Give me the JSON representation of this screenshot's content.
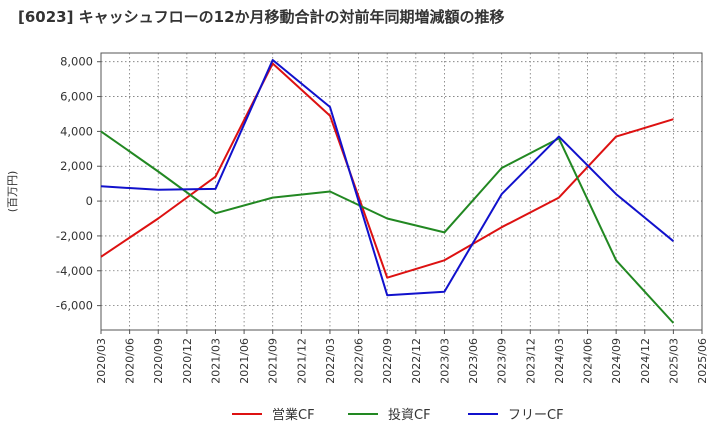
{
  "chart_data": {
    "type": "line",
    "title": "[6023]  キャッシュフローの12か月移動合計の対前年同期増減額の推移",
    "xlabel": "",
    "ylabel": "(百万円)",
    "ylim": [
      -7400,
      8500
    ],
    "yticks": [
      8000,
      6000,
      4000,
      2000,
      0,
      -2000,
      -4000,
      -6000
    ],
    "ytick_labels": [
      "8,000",
      "6,000",
      "4,000",
      "2,000",
      "0",
      "-2,000",
      "-4,000",
      "-6,000"
    ],
    "categories": [
      "2020/03",
      "2020/06",
      "2020/09",
      "2020/12",
      "2021/03",
      "2021/06",
      "2021/09",
      "2021/12",
      "2022/03",
      "2022/06",
      "2022/09",
      "2022/12",
      "2023/03",
      "2023/06",
      "2023/09",
      "2023/12",
      "2024/03",
      "2024/06",
      "2024/09",
      "2024/12",
      "2025/03",
      "2025/06"
    ],
    "grid": true,
    "legend_position": "bottom",
    "series": [
      {
        "name": "営業CF",
        "color": "#dd1111",
        "points": [
          [
            "2020/03",
            -3200
          ],
          [
            "2020/09",
            -1000
          ],
          [
            "2021/03",
            1400
          ],
          [
            "2021/09",
            7900
          ],
          [
            "2022/03",
            4900
          ],
          [
            "2022/09",
            -4400
          ],
          [
            "2023/03",
            -3400
          ],
          [
            "2023/09",
            -1500
          ],
          [
            "2024/03",
            200
          ],
          [
            "2024/09",
            3700
          ],
          [
            "2025/03",
            4700
          ]
        ]
      },
      {
        "name": "投資CF",
        "color": "#228822",
        "points": [
          [
            "2020/03",
            4000
          ],
          [
            "2020/09",
            1700
          ],
          [
            "2021/03",
            -700
          ],
          [
            "2021/09",
            200
          ],
          [
            "2022/03",
            550
          ],
          [
            "2022/09",
            -1000
          ],
          [
            "2023/03",
            -1800
          ],
          [
            "2023/09",
            1900
          ],
          [
            "2024/03",
            3600
          ],
          [
            "2024/09",
            -3400
          ],
          [
            "2025/03",
            -7000
          ]
        ]
      },
      {
        "name": "フリーCF",
        "color": "#1111cc",
        "points": [
          [
            "2020/03",
            850
          ],
          [
            "2020/09",
            650
          ],
          [
            "2021/03",
            700
          ],
          [
            "2021/09",
            8100
          ],
          [
            "2022/03",
            5400
          ],
          [
            "2022/09",
            -5400
          ],
          [
            "2023/03",
            -5200
          ],
          [
            "2023/09",
            400
          ],
          [
            "2024/03",
            3700
          ],
          [
            "2024/09",
            400
          ],
          [
            "2025/03",
            -2300
          ]
        ]
      }
    ]
  }
}
